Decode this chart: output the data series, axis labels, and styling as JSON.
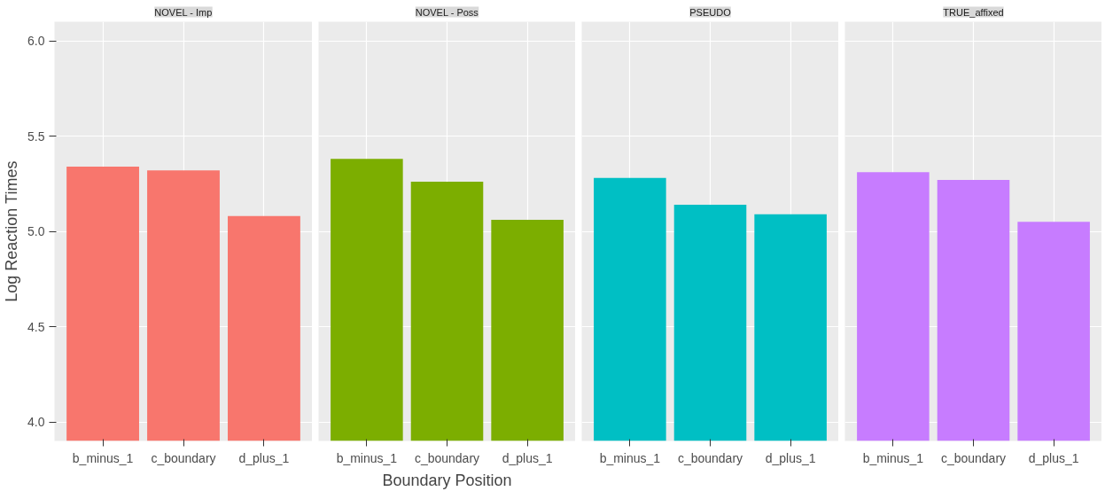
{
  "chart_data": [
    {
      "type": "bar",
      "title": "NOVEL - Imp",
      "ylabel": "Log Reaction Times",
      "categories": [
        "b_minus_1",
        "c_boundary",
        "d_plus_1"
      ],
      "values": [
        5.34,
        5.32,
        5.08
      ],
      "color": "#f8766d",
      "ylim": [
        3.9,
        6.1
      ],
      "yticks": [
        {
          "value": 4,
          "label": "4.0"
        },
        4.5,
        {
          "value": 5,
          "label": "5.0"
        },
        5.5,
        {
          "value": 6,
          "label": "6.0"
        }
      ],
      "grid": true
    },
    {
      "type": "bar",
      "title": "NOVEL - Poss",
      "xlabel": "Boundary Position",
      "categories": [
        "b_minus_1",
        "c_boundary",
        "d_plus_1"
      ],
      "values": [
        5.38,
        5.26,
        5.06
      ],
      "color": "#7cae00",
      "ylim": [
        3.9,
        6.1
      ],
      "yticks": [
        4,
        4.5,
        5,
        5.5,
        6
      ],
      "grid": true,
      "tick_labels": "x"
    },
    {
      "type": "bar",
      "title": "PSEUDO",
      "categories": [
        "b_minus_1",
        "c_boundary",
        "d_plus_1"
      ],
      "values": [
        5.28,
        5.14,
        5.09
      ],
      "color": "#00bfc4",
      "ylim": [
        3.9,
        6.1
      ],
      "yticks": [
        4,
        4.5,
        5,
        5.5,
        6
      ],
      "grid": true,
      "tick_labels": "x"
    },
    {
      "type": "bar",
      "title": "TRUE_affixed",
      "categories": [
        "b_minus_1",
        "c_boundary",
        "d_plus_1"
      ],
      "values": [
        5.31,
        5.27,
        5.05
      ],
      "color": "#c77cff",
      "ylim": [
        3.9,
        6.1
      ],
      "yticks": [
        4,
        4.5,
        5,
        5.5,
        6
      ],
      "grid": true,
      "tick_labels": "x"
    }
  ]
}
